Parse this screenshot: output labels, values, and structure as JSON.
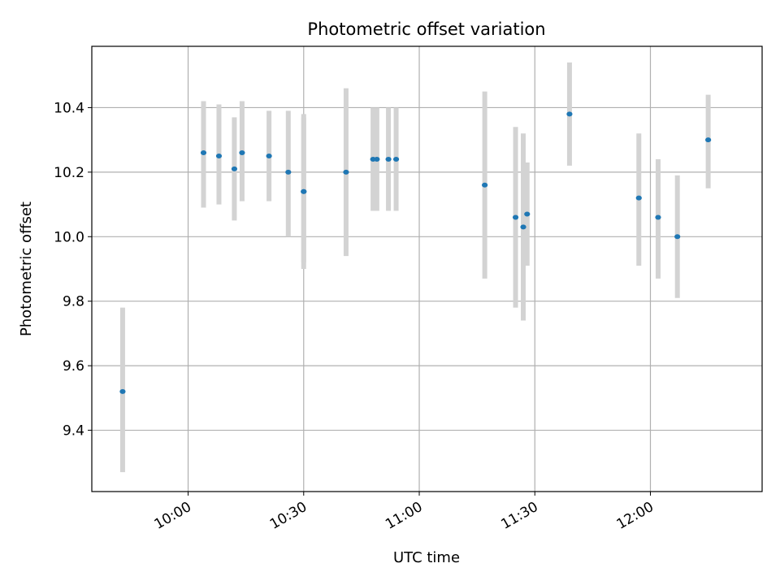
{
  "chart_data": {
    "type": "scatter",
    "title": "Photometric offset variation",
    "xlabel": "UTC time",
    "ylabel": "Photometric offset",
    "xlim": [
      "09:35",
      "12:29"
    ],
    "ylim": [
      9.21,
      10.59
    ],
    "grid": true,
    "x_ticks": [
      "10:00",
      "10:30",
      "11:00",
      "11:30",
      "12:00"
    ],
    "y_ticks": [
      9.4,
      9.6,
      9.8,
      10.0,
      10.2,
      10.4
    ],
    "y_tick_labels": [
      "9.4",
      "9.6",
      "9.8",
      "10.0",
      "10.2",
      "10.4"
    ],
    "colors": {
      "point": "#1f77b4",
      "errorbar": "#d3d3d3",
      "grid": "#b0b0b0"
    },
    "points": [
      {
        "x": "09:43",
        "y": 9.52,
        "ylo": 9.27,
        "yhi": 9.78
      },
      {
        "x": "10:04",
        "y": 10.26,
        "ylo": 10.09,
        "yhi": 10.42
      },
      {
        "x": "10:08",
        "y": 10.25,
        "ylo": 10.1,
        "yhi": 10.41
      },
      {
        "x": "10:12",
        "y": 10.21,
        "ylo": 10.05,
        "yhi": 10.37
      },
      {
        "x": "10:14",
        "y": 10.26,
        "ylo": 10.11,
        "yhi": 10.42
      },
      {
        "x": "10:21",
        "y": 10.25,
        "ylo": 10.11,
        "yhi": 10.39
      },
      {
        "x": "10:26",
        "y": 10.2,
        "ylo": 10.0,
        "yhi": 10.39
      },
      {
        "x": "10:30",
        "y": 10.14,
        "ylo": 9.9,
        "yhi": 10.38
      },
      {
        "x": "10:30",
        "y": 10.14,
        "ylo": 9.92,
        "yhi": 10.37
      },
      {
        "x": "10:41",
        "y": 10.2,
        "ylo": 9.94,
        "yhi": 10.46
      },
      {
        "x": "10:48",
        "y": 10.24,
        "ylo": 10.08,
        "yhi": 10.4
      },
      {
        "x": "10:49",
        "y": 10.24,
        "ylo": 10.08,
        "yhi": 10.4
      },
      {
        "x": "10:52",
        "y": 10.24,
        "ylo": 10.08,
        "yhi": 10.4
      },
      {
        "x": "10:54",
        "y": 10.24,
        "ylo": 10.08,
        "yhi": 10.4
      },
      {
        "x": "11:17",
        "y": 10.16,
        "ylo": 9.87,
        "yhi": 10.45
      },
      {
        "x": "11:25",
        "y": 10.06,
        "ylo": 9.78,
        "yhi": 10.34
      },
      {
        "x": "11:27",
        "y": 10.03,
        "ylo": 9.74,
        "yhi": 10.32
      },
      {
        "x": "11:28",
        "y": 10.07,
        "ylo": 9.91,
        "yhi": 10.23
      },
      {
        "x": "11:39",
        "y": 10.38,
        "ylo": 10.22,
        "yhi": 10.54
      },
      {
        "x": "11:57",
        "y": 10.12,
        "ylo": 9.91,
        "yhi": 10.32
      },
      {
        "x": "12:02",
        "y": 10.06,
        "ylo": 9.87,
        "yhi": 10.24
      },
      {
        "x": "12:07",
        "y": 10.0,
        "ylo": 9.81,
        "yhi": 10.19
      },
      {
        "x": "12:15",
        "y": 10.3,
        "ylo": 10.15,
        "yhi": 10.44
      }
    ]
  }
}
